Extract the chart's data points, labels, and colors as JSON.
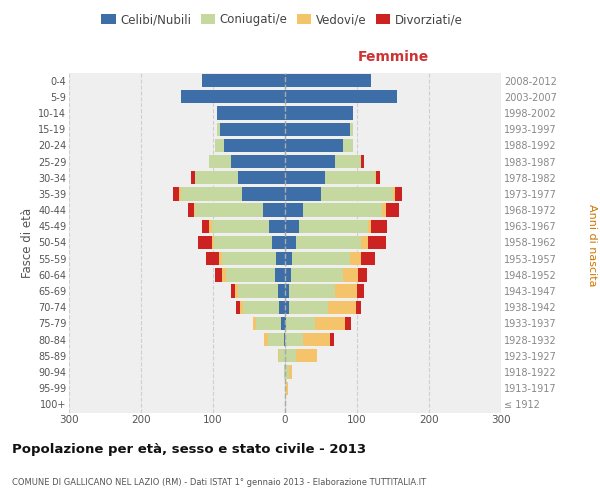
{
  "age_groups": [
    "100+",
    "95-99",
    "90-94",
    "85-89",
    "80-84",
    "75-79",
    "70-74",
    "65-69",
    "60-64",
    "55-59",
    "50-54",
    "45-49",
    "40-44",
    "35-39",
    "30-34",
    "25-29",
    "20-24",
    "15-19",
    "10-14",
    "5-9",
    "0-4"
  ],
  "birth_years": [
    "≤ 1912",
    "1913-1917",
    "1918-1922",
    "1923-1927",
    "1928-1932",
    "1933-1937",
    "1938-1942",
    "1943-1947",
    "1948-1952",
    "1953-1957",
    "1958-1962",
    "1963-1967",
    "1968-1972",
    "1973-1977",
    "1978-1982",
    "1983-1987",
    "1988-1992",
    "1993-1997",
    "1998-2002",
    "2003-2007",
    "2008-2012"
  ],
  "males_celibi": [
    0,
    0,
    0,
    0,
    2,
    5,
    8,
    10,
    14,
    12,
    18,
    22,
    30,
    60,
    65,
    75,
    85,
    90,
    95,
    145,
    115
  ],
  "males_coniugati": [
    0,
    0,
    2,
    8,
    22,
    35,
    50,
    55,
    68,
    75,
    80,
    80,
    95,
    85,
    60,
    30,
    12,
    5,
    0,
    0,
    0
  ],
  "males_vedovi": [
    0,
    0,
    0,
    2,
    5,
    5,
    5,
    5,
    5,
    5,
    3,
    3,
    2,
    2,
    0,
    0,
    0,
    0,
    0,
    0,
    0
  ],
  "males_divorziati": [
    0,
    0,
    0,
    0,
    0,
    0,
    5,
    5,
    10,
    18,
    20,
    10,
    8,
    8,
    5,
    0,
    0,
    0,
    0,
    0,
    0
  ],
  "females_nubili": [
    0,
    0,
    0,
    0,
    0,
    2,
    5,
    5,
    8,
    10,
    15,
    20,
    25,
    50,
    55,
    70,
    80,
    90,
    95,
    155,
    120
  ],
  "females_coniugate": [
    0,
    2,
    5,
    15,
    25,
    40,
    55,
    65,
    72,
    80,
    90,
    95,
    110,
    100,
    70,
    35,
    15,
    5,
    0,
    0,
    0
  ],
  "females_vedove": [
    0,
    2,
    5,
    30,
    38,
    42,
    38,
    30,
    22,
    15,
    10,
    5,
    5,
    3,
    2,
    0,
    0,
    0,
    0,
    0,
    0
  ],
  "females_divorziate": [
    0,
    0,
    0,
    0,
    5,
    8,
    8,
    10,
    12,
    20,
    25,
    22,
    18,
    10,
    5,
    5,
    0,
    0,
    0,
    0,
    0
  ],
  "color_celibi": "#3d6ea8",
  "color_coniugati": "#c5d8a0",
  "color_vedovi": "#f5c46a",
  "color_divorziati": "#cc2222",
  "xlim": 300,
  "title": "Popolazione per età, sesso e stato civile - 2013",
  "subtitle": "COMUNE DI GALLICANO NEL LAZIO (RM) - Dati ISTAT 1° gennaio 2013 - Elaborazione TUTTITALIA.IT",
  "ylabel_left": "Fasce di età",
  "ylabel_right": "Anni di nascita",
  "label_femmine": "Femmine",
  "legend_labels": [
    "Celibi/Nubili",
    "Coniugati/e",
    "Vedovi/e",
    "Divorziati/e"
  ],
  "bg_color": "#ffffff",
  "plot_bg_color": "#efefef"
}
